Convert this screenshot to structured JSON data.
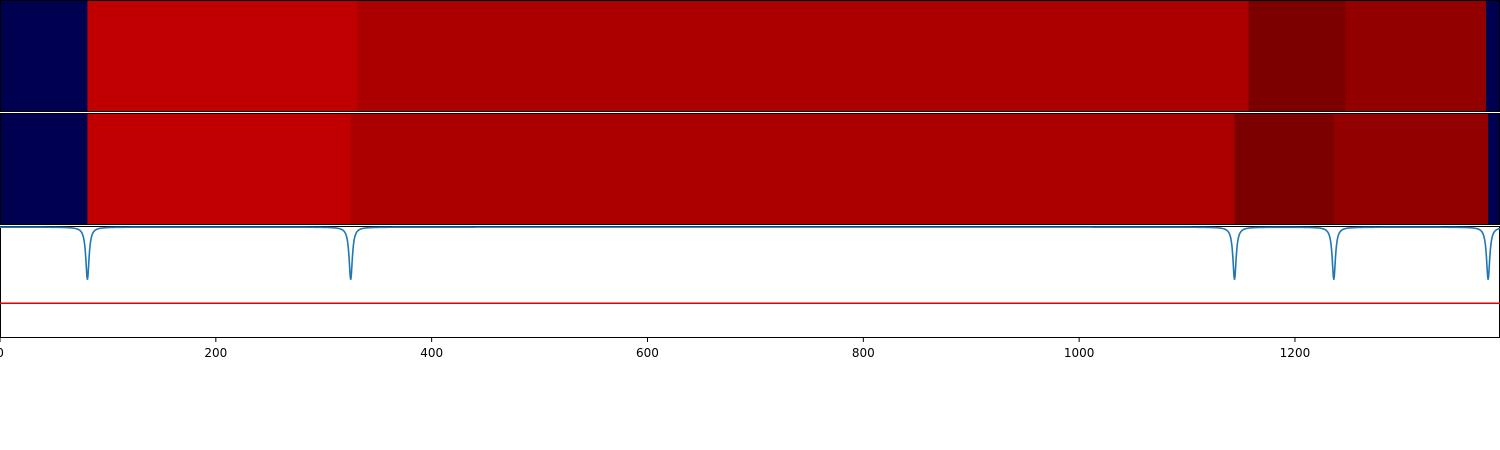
{
  "chart_data": [
    {
      "type": "heatmap",
      "rows": [
        {
          "segments": [
            {
              "start": 0,
              "end": 81,
              "color": "#000050"
            },
            {
              "start": 81,
              "end": 331,
              "color": "#c00000"
            },
            {
              "start": 331,
              "end": 1157,
              "color": "#aa0000"
            },
            {
              "start": 1157,
              "end": 1247,
              "color": "#7d0000"
            },
            {
              "start": 1247,
              "end": 1377,
              "color": "#930000"
            },
            {
              "start": 1377,
              "end": 1390,
              "color": "#000050"
            }
          ]
        },
        {
          "segments": [
            {
              "start": 0,
              "end": 81,
              "color": "#000050"
            },
            {
              "start": 81,
              "end": 325,
              "color": "#c00000"
            },
            {
              "start": 325,
              "end": 1144,
              "color": "#aa0000"
            },
            {
              "start": 1144,
              "end": 1236,
              "color": "#7d0000"
            },
            {
              "start": 1236,
              "end": 1379,
              "color": "#930000"
            },
            {
              "start": 1379,
              "end": 1390,
              "color": "#000050"
            }
          ]
        }
      ]
    },
    {
      "type": "line",
      "xlim": [
        0,
        1390
      ],
      "ylim": [
        0,
        1
      ],
      "xticks": [
        0,
        200,
        400,
        600,
        800,
        1000,
        1200
      ],
      "xtick_labels": [
        "0",
        "200",
        "400",
        "600",
        "800",
        "1000",
        "1200"
      ],
      "baseline": 0.99,
      "threshold": 0.31,
      "dips": [
        {
          "x": 81,
          "depth": 0.47
        },
        {
          "x": 325,
          "depth": 0.47
        },
        {
          "x": 1144,
          "depth": 0.47
        },
        {
          "x": 1236,
          "depth": 0.47
        },
        {
          "x": 1379,
          "depth": 0.47
        }
      ],
      "colors": {
        "series": "#1f77b4",
        "threshold": "#e00000"
      }
    }
  ]
}
